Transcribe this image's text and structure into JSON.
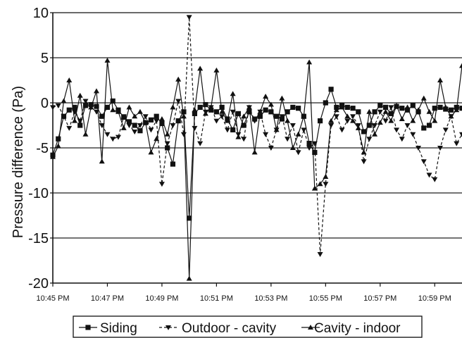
{
  "chart_data": {
    "type": "line",
    "title": "",
    "xlabel": "",
    "ylabel": "Pressure difference (Pa)",
    "ylim": [
      -20,
      10
    ],
    "yticks": [
      "10",
      "5",
      "0",
      "-5",
      "-10",
      "-15",
      "-20"
    ],
    "xticks": [
      "10:45 PM",
      "10:47 PM",
      "10:49 PM",
      "10:51 PM",
      "10:53 PM",
      "10:55 PM",
      "10:57 PM",
      "10:59 PM"
    ],
    "xlim_minutes": [
      0,
      15
    ],
    "grid": "horizontal",
    "legend_position": "bottom",
    "series": [
      {
        "name": "Siding",
        "marker": "square",
        "line_style": "solid",
        "x": [
          0,
          0.2,
          0.4,
          0.6,
          0.8,
          1,
          1.2,
          1.4,
          1.6,
          1.8,
          2,
          2.2,
          2.4,
          2.6,
          2.8,
          3,
          3.2,
          3.4,
          3.6,
          3.8,
          4,
          4.2,
          4.4,
          4.6,
          4.8,
          5,
          5.2,
          5.4,
          5.6,
          5.8,
          6,
          6.2,
          6.4,
          6.6,
          6.8,
          7,
          7.2,
          7.4,
          7.6,
          7.8,
          8,
          8.2,
          8.4,
          8.6,
          8.8,
          9,
          9.2,
          9.4,
          9.6,
          9.8,
          10,
          10.2,
          10.4,
          10.6,
          10.8,
          11,
          11.2,
          11.4,
          11.6,
          11.8,
          12,
          12.2,
          12.4,
          12.6,
          12.8,
          13,
          13.2,
          13.4,
          13.6,
          13.8,
          14,
          14.2,
          14.4,
          14.6,
          14.8,
          15
        ],
        "values": [
          -5.8,
          -4.0,
          -1.5,
          -0.8,
          -0.5,
          -2.5,
          -0.3,
          -0.2,
          -0.4,
          -1.5,
          -0.5,
          0.2,
          -0.8,
          -1.6,
          -2.1,
          -2.5,
          -3.1,
          -2.2,
          -1.9,
          -1.5,
          -2.3,
          -5.0,
          -6.8,
          -2.0,
          -1.0,
          -12.8,
          -1.2,
          -0.5,
          -0.2,
          -0.8,
          -1.0,
          -0.5,
          -1.8,
          -3.0,
          -1.2,
          -2.5,
          -1.0,
          -1.8,
          -1.5,
          -0.8,
          -1.0,
          -1.5,
          -1.8,
          -1.0,
          -0.5,
          -0.6,
          -1.5,
          -4.5,
          -5.5,
          -2.0,
          0.0,
          1.5,
          -0.5,
          -0.3,
          -0.5,
          -0.6,
          -1.0,
          -3.2,
          -2.5,
          -1.0,
          -0.3,
          -0.5,
          -1.2,
          -0.4,
          -0.6,
          -0.8,
          -0.3,
          -1.0,
          -2.8,
          -2.5,
          -0.6,
          -0.5,
          -0.7,
          -0.8,
          -0.5,
          -0.6
        ]
      },
      {
        "name": "Outdoor - cavity",
        "marker": "triangle-down",
        "line_style": "dashed",
        "x": [
          0,
          0.2,
          0.4,
          0.6,
          0.8,
          1,
          1.2,
          1.4,
          1.6,
          1.8,
          2,
          2.2,
          2.4,
          2.6,
          2.8,
          3,
          3.2,
          3.4,
          3.6,
          3.8,
          4,
          4.2,
          4.4,
          4.6,
          4.8,
          5,
          5.2,
          5.4,
          5.6,
          5.8,
          6,
          6.2,
          6.4,
          6.6,
          6.8,
          7,
          7.2,
          7.4,
          7.6,
          7.8,
          8,
          8.2,
          8.4,
          8.6,
          8.8,
          9,
          9.2,
          9.4,
          9.6,
          9.8,
          10,
          10.2,
          10.4,
          10.6,
          10.8,
          11,
          11.2,
          11.4,
          11.6,
          11.8,
          12,
          12.2,
          12.4,
          12.6,
          12.8,
          13,
          13.2,
          13.4,
          13.6,
          13.8,
          14,
          14.2,
          14.4,
          14.6,
          14.8,
          15
        ],
        "values": [
          -0.5,
          -0.3,
          -1.5,
          -2.8,
          -1.0,
          -2.0,
          0.2,
          -0.5,
          -1.0,
          -2.5,
          -3.5,
          -4.0,
          -3.8,
          -1.5,
          -2.5,
          -3.2,
          -2.5,
          -1.5,
          -3.0,
          -2.0,
          -9.0,
          -4.5,
          -2.5,
          0.2,
          -3.5,
          9.5,
          -2.8,
          -4.5,
          -1.0,
          -0.5,
          -2.0,
          -1.5,
          -3.0,
          -1.0,
          -3.5,
          -4.0,
          -0.5,
          -2.0,
          -1.0,
          -3.5,
          -5.0,
          -3.0,
          -1.5,
          -4.0,
          -2.5,
          -5.5,
          -3.0,
          -5.0,
          -4.5,
          -16.8,
          -9.0,
          -2.5,
          -1.5,
          -3.0,
          -2.0,
          -1.5,
          -2.5,
          -6.5,
          -4.0,
          -2.5,
          -1.0,
          -2.0,
          -0.5,
          -3.0,
          -4.0,
          -2.5,
          -3.5,
          -5.0,
          -6.5,
          -8.0,
          -8.5,
          -5.0,
          -3.0,
          -1.5,
          -4.5,
          -3.5
        ]
      },
      {
        "name": "Cavity - indoor",
        "marker": "triangle-up",
        "line_style": "solid",
        "x": [
          0,
          0.2,
          0.4,
          0.6,
          0.8,
          1,
          1.2,
          1.4,
          1.6,
          1.8,
          2,
          2.2,
          2.4,
          2.6,
          2.8,
          3,
          3.2,
          3.4,
          3.6,
          3.8,
          4,
          4.2,
          4.4,
          4.6,
          4.8,
          5,
          5.2,
          5.4,
          5.6,
          5.8,
          6,
          6.2,
          6.4,
          6.6,
          6.8,
          7,
          7.2,
          7.4,
          7.6,
          7.8,
          8,
          8.2,
          8.4,
          8.6,
          8.8,
          9,
          9.2,
          9.4,
          9.6,
          9.8,
          10,
          10.2,
          10.4,
          10.6,
          10.8,
          11,
          11.2,
          11.4,
          11.6,
          11.8,
          12,
          12.2,
          12.4,
          12.6,
          12.8,
          13,
          13.2,
          13.4,
          13.6,
          13.8,
          14,
          14.2,
          14.4,
          14.6,
          14.8,
          15
        ],
        "values": [
          -6.0,
          -4.8,
          0.2,
          2.5,
          -2.0,
          0.8,
          -3.5,
          -0.5,
          1.3,
          -6.5,
          4.7,
          -0.8,
          -1.0,
          -2.8,
          -0.5,
          -1.5,
          -1.0,
          -2.2,
          -5.5,
          -4.0,
          -1.8,
          -3.5,
          -0.5,
          2.6,
          -1.5,
          -19.5,
          -0.8,
          3.8,
          -1.2,
          -0.5,
          3.6,
          -1.0,
          -2.0,
          1.0,
          -3.8,
          -1.5,
          -0.5,
          -5.5,
          -1.0,
          0.7,
          -0.2,
          -3.0,
          0.5,
          -2.0,
          -5.0,
          -3.5,
          -1.5,
          4.5,
          -9.5,
          -9.0,
          -8.2,
          -2.0,
          -0.8,
          -0.5,
          -1.5,
          -2.0,
          -2.8,
          -5.5,
          -1.0,
          -3.5,
          -2.2,
          -1.0,
          -2.0,
          -0.3,
          -1.8,
          -0.5,
          -2.0,
          -0.8,
          0.5,
          -1.0,
          -2.0,
          2.5,
          -0.5,
          -1.5,
          -0.8,
          4.1
        ]
      }
    ]
  }
}
